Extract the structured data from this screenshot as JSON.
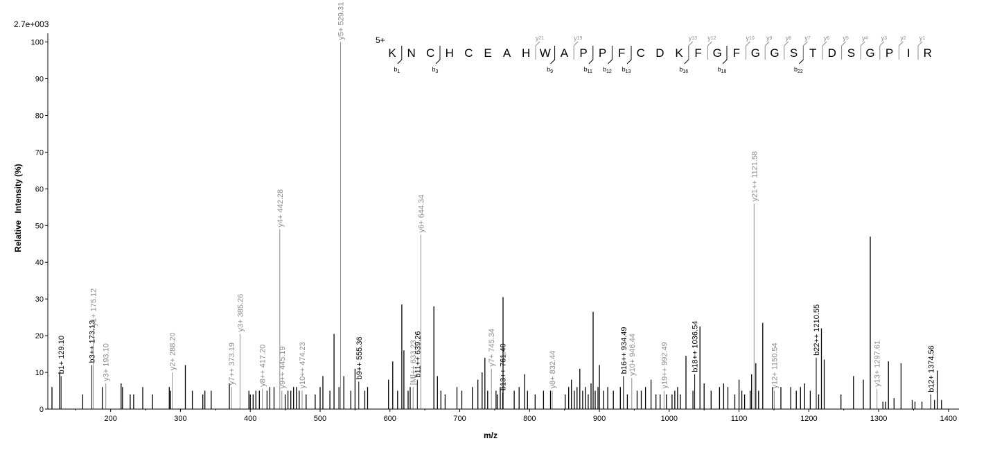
{
  "chart_data": {
    "type": "bar",
    "subtype": "mass-spectrum",
    "scale_label": "2.7e+003",
    "xlabel": "m/z",
    "ylabel": "Relative   Intensity (%)",
    "xlim": [
      110,
      1415
    ],
    "ylim": [
      0,
      102
    ],
    "xticks": [
      200,
      300,
      400,
      500,
      600,
      700,
      800,
      900,
      1000,
      1100,
      1200,
      1300,
      1400
    ],
    "yticks": [
      0,
      10,
      20,
      30,
      40,
      50,
      60,
      70,
      80,
      90,
      100
    ],
    "colors": {
      "unlabeled": "#000000",
      "b_ion": "#000000",
      "y_ion": "#8c8c8c",
      "axis": "#000000"
    },
    "labeled_peaks": [
      {
        "mz": 129.1,
        "intensity": 9.0,
        "label": "b1+ 129.10",
        "ion": "b"
      },
      {
        "mz": 173.13,
        "intensity": 12.0,
        "label": "b3++ 173.13",
        "ion": "b"
      },
      {
        "mz": 175.12,
        "intensity": 22.0,
        "label": "y1+ 175.12",
        "ion": "y"
      },
      {
        "mz": 193.1,
        "intensity": 7.0,
        "label": "y3+ 193.10",
        "ion": "y"
      },
      {
        "mz": 288.2,
        "intensity": 10.0,
        "label": "y2+ 288.20",
        "ion": "y"
      },
      {
        "mz": 373.19,
        "intensity": 6.0,
        "label": "y7++ 373.19",
        "ion": "y"
      },
      {
        "mz": 385.26,
        "intensity": 20.5,
        "label": "y3+ 385.26",
        "ion": "y"
      },
      {
        "mz": 417.2,
        "intensity": 5.5,
        "label": "y8++ 417.20",
        "ion": "y"
      },
      {
        "mz": 442.28,
        "intensity": 49.0,
        "label": "y4+ 442.28",
        "ion": "y"
      },
      {
        "mz": 445.19,
        "intensity": 5.0,
        "label": "y9++ 445.19",
        "ion": "y"
      },
      {
        "mz": 474.23,
        "intensity": 5.0,
        "label": "y10++ 474.23",
        "ion": "y"
      },
      {
        "mz": 529.31,
        "intensity": 100.0,
        "label": "y5+ 529.31",
        "ion": "y"
      },
      {
        "mz": 555.36,
        "intensity": 7.5,
        "label": "b9++ 555.36",
        "ion": "b"
      },
      {
        "mz": 633.23,
        "intensity": 6.0,
        "label": "[M]++ 633.23",
        "ion": "y"
      },
      {
        "mz": 639.26,
        "intensity": 8.0,
        "label": "b11++ 639.26",
        "ion": "b"
      },
      {
        "mz": 644.34,
        "intensity": 47.5,
        "label": "y6+ 644.34",
        "ion": "y"
      },
      {
        "mz": 745.34,
        "intensity": 11.0,
        "label": "y7+ 745.34",
        "ion": "y"
      },
      {
        "mz": 761.4,
        "intensity": 4.5,
        "label": "b13++ 761.40",
        "ion": "b"
      },
      {
        "mz": 832.44,
        "intensity": 5.0,
        "label": "y8+ 832.44",
        "ion": "y"
      },
      {
        "mz": 934.49,
        "intensity": 9.0,
        "label": "b16++ 934.49",
        "ion": "b"
      },
      {
        "mz": 946.44,
        "intensity": 8.5,
        "label": "y10+ 946.44",
        "ion": "y"
      },
      {
        "mz": 992.49,
        "intensity": 5.0,
        "label": "y19++ 992.49",
        "ion": "y"
      },
      {
        "mz": 1036.54,
        "intensity": 9.5,
        "label": "b18++ 1036.54",
        "ion": "b"
      },
      {
        "mz": 1121.58,
        "intensity": 56.0,
        "label": "y21++ 1121.58",
        "ion": "y"
      },
      {
        "mz": 1150.54,
        "intensity": 5.0,
        "label": "y12+ 1150.54",
        "ion": "y"
      },
      {
        "mz": 1210.55,
        "intensity": 14.0,
        "label": "b22++ 1210.55",
        "ion": "b"
      },
      {
        "mz": 1297.61,
        "intensity": 5.5,
        "label": "y13+ 1297.61",
        "ion": "y"
      },
      {
        "mz": 1374.56,
        "intensity": 4.0,
        "label": "b12+ 1374.56",
        "ion": "b"
      }
    ],
    "unlabeled_peaks": [
      [
        116,
        6
      ],
      [
        127,
        10
      ],
      [
        160,
        4
      ],
      [
        188,
        6
      ],
      [
        215,
        7
      ],
      [
        217,
        6
      ],
      [
        228,
        4
      ],
      [
        233,
        4
      ],
      [
        246,
        6
      ],
      [
        260,
        4
      ],
      [
        284,
        6
      ],
      [
        286,
        5
      ],
      [
        307,
        12
      ],
      [
        317,
        5
      ],
      [
        332,
        4
      ],
      [
        335,
        5
      ],
      [
        344,
        5
      ],
      [
        370,
        7
      ],
      [
        398,
        5
      ],
      [
        400,
        4
      ],
      [
        404,
        4
      ],
      [
        408,
        5
      ],
      [
        413,
        5
      ],
      [
        424,
        5
      ],
      [
        428,
        6
      ],
      [
        434,
        6
      ],
      [
        450,
        4
      ],
      [
        454,
        5
      ],
      [
        458,
        5
      ],
      [
        462,
        6
      ],
      [
        466,
        6
      ],
      [
        470,
        5
      ],
      [
        480,
        4
      ],
      [
        493,
        4
      ],
      [
        500,
        6
      ],
      [
        504,
        9
      ],
      [
        514,
        5
      ],
      [
        520,
        20.5
      ],
      [
        527,
        6
      ],
      [
        534,
        9
      ],
      [
        544,
        5
      ],
      [
        550,
        11
      ],
      [
        564,
        5
      ],
      [
        568,
        6
      ],
      [
        598,
        8
      ],
      [
        604,
        13
      ],
      [
        611,
        5
      ],
      [
        617,
        28.5
      ],
      [
        620,
        16
      ],
      [
        626,
        5
      ],
      [
        629,
        6
      ],
      [
        663,
        28
      ],
      [
        668,
        9
      ],
      [
        673,
        5
      ],
      [
        679,
        4
      ],
      [
        696,
        6
      ],
      [
        703,
        5
      ],
      [
        718,
        6
      ],
      [
        726,
        8
      ],
      [
        732,
        10
      ],
      [
        736,
        14
      ],
      [
        740,
        5
      ],
      [
        752,
        5
      ],
      [
        754,
        4
      ],
      [
        758,
        6
      ],
      [
        762,
        30.5
      ],
      [
        778,
        5
      ],
      [
        785,
        6
      ],
      [
        793,
        9.5
      ],
      [
        797,
        5
      ],
      [
        808,
        4
      ],
      [
        820,
        5
      ],
      [
        830,
        5
      ],
      [
        851,
        4
      ],
      [
        856,
        6
      ],
      [
        860,
        8
      ],
      [
        864,
        5
      ],
      [
        868,
        6
      ],
      [
        872,
        11
      ],
      [
        876,
        5
      ],
      [
        880,
        6
      ],
      [
        884,
        4
      ],
      [
        888,
        7
      ],
      [
        891,
        26.5
      ],
      [
        894,
        5
      ],
      [
        898,
        6
      ],
      [
        900,
        12
      ],
      [
        906,
        5
      ],
      [
        912,
        6
      ],
      [
        920,
        5
      ],
      [
        930,
        6
      ],
      [
        940,
        4
      ],
      [
        954,
        5
      ],
      [
        960,
        5
      ],
      [
        966,
        6
      ],
      [
        974,
        8
      ],
      [
        981,
        4
      ],
      [
        987,
        4
      ],
      [
        996,
        4
      ],
      [
        1004,
        4
      ],
      [
        1008,
        5
      ],
      [
        1012,
        6
      ],
      [
        1016,
        4
      ],
      [
        1024,
        14.5
      ],
      [
        1034,
        5
      ],
      [
        1044,
        22.5
      ],
      [
        1050,
        7
      ],
      [
        1060,
        5
      ],
      [
        1072,
        6
      ],
      [
        1078,
        7
      ],
      [
        1084,
        6
      ],
      [
        1094,
        4
      ],
      [
        1100,
        8
      ],
      [
        1104,
        5
      ],
      [
        1108,
        4
      ],
      [
        1116,
        5
      ],
      [
        1118,
        9.5
      ],
      [
        1124,
        12.5
      ],
      [
        1128,
        5
      ],
      [
        1134,
        23.5
      ],
      [
        1148,
        6
      ],
      [
        1160,
        6
      ],
      [
        1174,
        6
      ],
      [
        1182,
        5
      ],
      [
        1188,
        6
      ],
      [
        1194,
        7
      ],
      [
        1202,
        5
      ],
      [
        1214,
        4
      ],
      [
        1218,
        22
      ],
      [
        1222,
        13.5
      ],
      [
        1246,
        4
      ],
      [
        1264,
        9
      ],
      [
        1278,
        8
      ],
      [
        1288,
        47
      ],
      [
        1306,
        2
      ],
      [
        1310,
        2
      ],
      [
        1314,
        13
      ],
      [
        1322,
        3
      ],
      [
        1332,
        12.5
      ],
      [
        1348,
        2.5
      ],
      [
        1352,
        2
      ],
      [
        1362,
        2
      ],
      [
        1380,
        2.5
      ],
      [
        1384,
        10.5
      ],
      [
        1390,
        2.5
      ]
    ],
    "precursor_charge": "5+",
    "sequence": [
      "K",
      "N",
      "C",
      "H",
      "C",
      "E",
      "A",
      "H",
      "W",
      "A",
      "P",
      "P",
      "F",
      "C",
      "D",
      "K",
      "F",
      "G",
      "F",
      "G",
      "G",
      "S",
      "T",
      "D",
      "S",
      "G",
      "P",
      "I",
      "R"
    ],
    "b_ions": [
      1,
      3,
      9,
      11,
      12,
      13,
      16,
      18,
      22
    ],
    "y_ions": [
      21,
      19,
      13,
      12,
      10,
      9,
      8,
      7,
      6,
      5,
      4,
      3,
      2,
      1
    ]
  }
}
